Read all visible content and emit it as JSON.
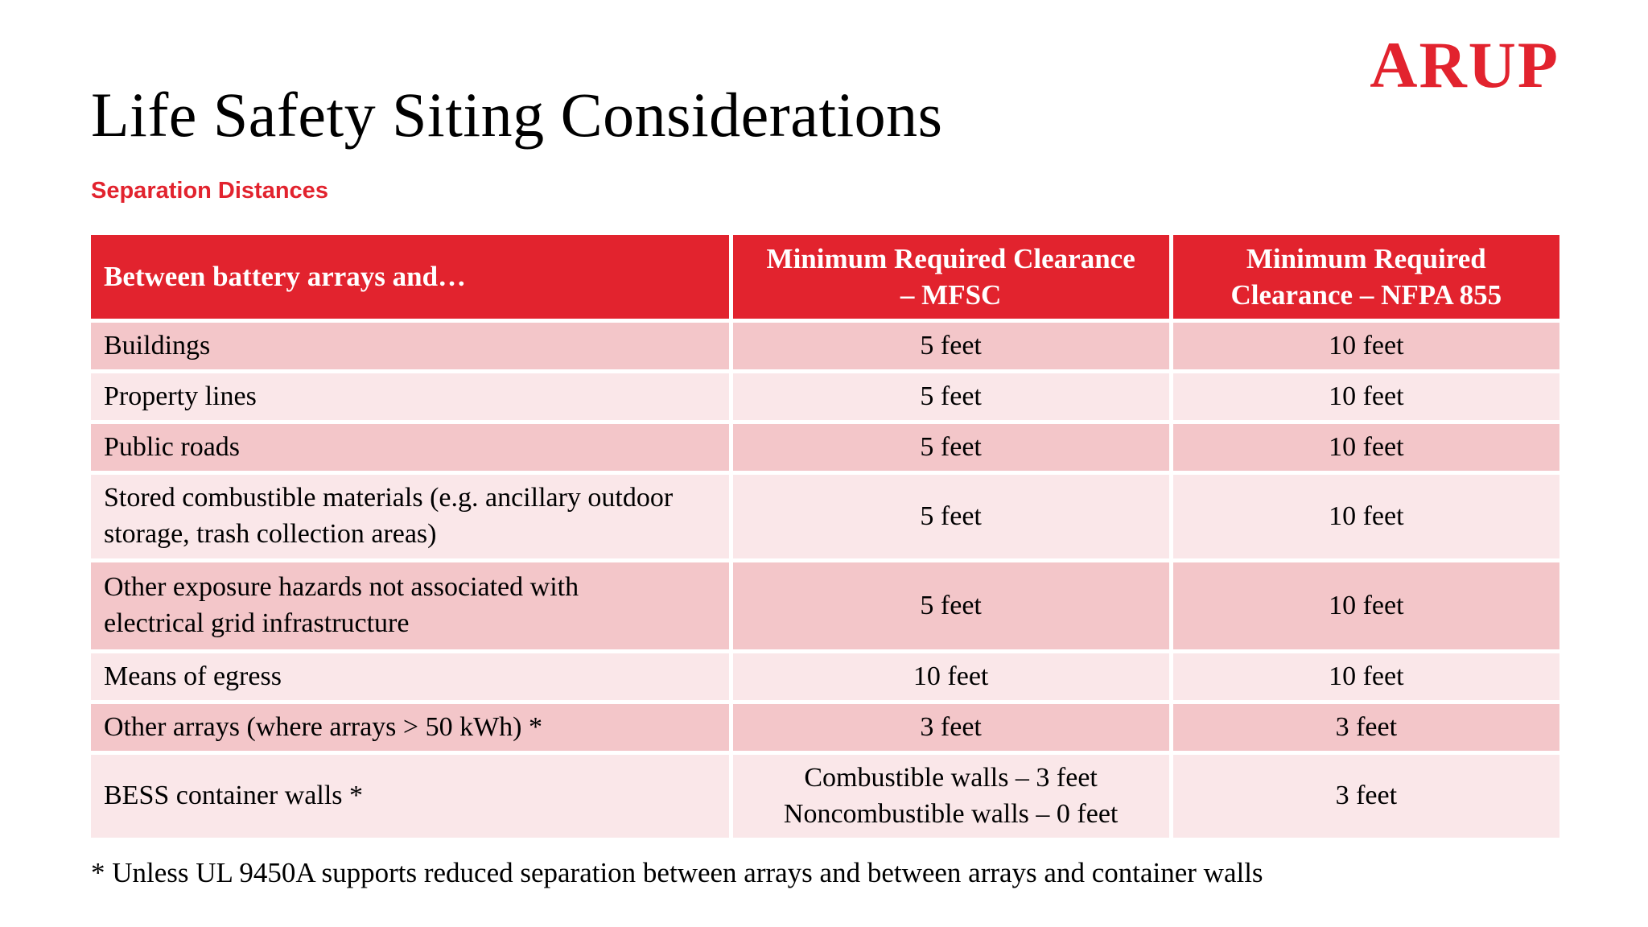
{
  "brand": {
    "logo_text": "ARUP"
  },
  "page": {
    "title": "Life Safety Siting Considerations",
    "subtitle": "Separation Distances"
  },
  "colors": {
    "accent_red": "#e2232e",
    "header_bg": "#e2232e",
    "row_dark": "#f3c6c9",
    "row_light": "#fae7e9",
    "header_text": "#ffffff",
    "text": "#000000"
  },
  "table": {
    "header": [
      {
        "lines": [
          "Between battery arrays and…"
        ]
      },
      {
        "lines": [
          "Minimum Required  Clearance",
          "– MFSC"
        ]
      },
      {
        "lines": [
          "Minimum Required",
          "Clearance – NFPA 855"
        ]
      }
    ],
    "rows": [
      {
        "label": "Buildings",
        "mfsc": [
          "5 feet"
        ],
        "nfpa": [
          "10 feet"
        ]
      },
      {
        "label": "Property lines",
        "mfsc": [
          "5 feet"
        ],
        "nfpa": [
          "10 feet"
        ]
      },
      {
        "label": "Public roads",
        "mfsc": [
          "5 feet"
        ],
        "nfpa": [
          "10 feet"
        ]
      },
      {
        "label": "Stored combustible materials (e.g. ancillary outdoor storage, trash collection areas)",
        "mfsc": [
          "5 feet"
        ],
        "nfpa": [
          "10 feet"
        ]
      },
      {
        "label": "Other exposure hazards not associated with electrical grid infrastructure",
        "mfsc": [
          "5 feet"
        ],
        "nfpa": [
          "10 feet"
        ]
      },
      {
        "label": "Means of egress",
        "mfsc": [
          "10 feet"
        ],
        "nfpa": [
          "10 feet"
        ]
      },
      {
        "label": "Other arrays (where arrays > 50 kWh) *",
        "mfsc": [
          "3 feet"
        ],
        "nfpa": [
          "3 feet"
        ]
      },
      {
        "label": "BESS container walls *",
        "mfsc": [
          "Combustible walls – 3 feet",
          "Noncombustible walls – 0 feet"
        ],
        "nfpa": [
          "3 feet"
        ]
      }
    ]
  },
  "footnote": "* Unless UL 9450A supports reduced separation between arrays and between arrays and container walls"
}
